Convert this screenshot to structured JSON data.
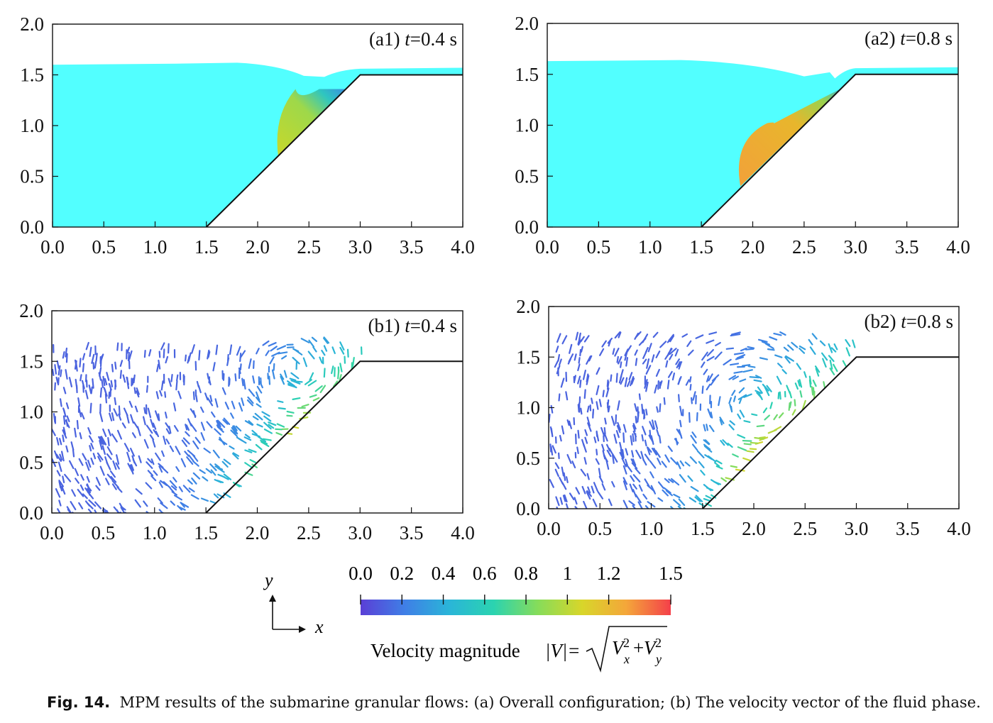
{
  "figure": {
    "panels": [
      {
        "id": "a1",
        "label": "(a1)",
        "time_var": "t",
        "time_value": "=0.4 s",
        "kind": "config",
        "xticks": [
          "0.0",
          "0.5",
          "1.0",
          "1.5",
          "2.0",
          "2.5",
          "3.0",
          "3.5",
          "4.0"
        ],
        "yticks": [
          "0.0",
          "0.5",
          "1.0",
          "1.5",
          "2.0"
        ]
      },
      {
        "id": "a2",
        "label": "(a2)",
        "time_var": "t",
        "time_value": "=0.8 s",
        "kind": "config",
        "xticks": [
          "0.0",
          "0.5",
          "1.0",
          "1.5",
          "2.0",
          "2.5",
          "3.0",
          "3.5",
          "4.0"
        ],
        "yticks": [
          "0.0",
          "0.5",
          "1.0",
          "1.5",
          "2.0"
        ]
      },
      {
        "id": "b1",
        "label": "(b1)",
        "time_var": "t",
        "time_value": "=0.4 s",
        "kind": "vector",
        "xticks": [
          "0.0",
          "0.5",
          "1.0",
          "1.5",
          "2.0",
          "2.5",
          "3.0",
          "3.5",
          "4.0"
        ],
        "yticks": [
          "0.0",
          "0.5",
          "1.0",
          "1.5",
          "2.0"
        ]
      },
      {
        "id": "b2",
        "label": "(b2)",
        "time_var": "t",
        "time_value": "=0.8 s",
        "kind": "vector",
        "xticks": [
          "0.0",
          "0.5",
          "1.0",
          "1.5",
          "2.0",
          "2.5",
          "3.0",
          "3.5",
          "4.0"
        ],
        "yticks": [
          "0.0",
          "0.5",
          "1.0",
          "1.5",
          "2.0"
        ]
      }
    ],
    "slope": {
      "toe_x": 1.5,
      "crest_x": 3.0,
      "crest_y": 1.5
    },
    "colors": {
      "fluid": "#52ffff",
      "frame": "#111111"
    },
    "axes_legend": {
      "x": "x",
      "y": "y"
    },
    "colorbar": {
      "ticks": [
        "0.0",
        "0.2",
        "0.4",
        "0.6",
        "0.8",
        "1",
        "1.2",
        "1.5"
      ],
      "tick_values": [
        0.0,
        0.2,
        0.4,
        0.6,
        0.8,
        1.0,
        1.2,
        1.5
      ],
      "range": [
        0,
        1.5
      ],
      "stops": [
        "#5a3fd6",
        "#3f7fe6",
        "#2ab5d8",
        "#2bd3b0",
        "#86dc5a",
        "#d8d62a",
        "#f4a63a",
        "#f4404a"
      ],
      "title": "Velocity magnitude",
      "formula": {
        "lhs": "|V|=",
        "v1": "V",
        "s1": "x",
        "sup1": "2",
        "plus": "+",
        "v2": "V",
        "s2": "y",
        "sup2": "2"
      }
    }
  },
  "caption": {
    "label": "Fig. 14.",
    "text": "MPM results of the submarine granular flows: (a) Overall configuration; (b) The velocity vector of the fluid phase."
  }
}
